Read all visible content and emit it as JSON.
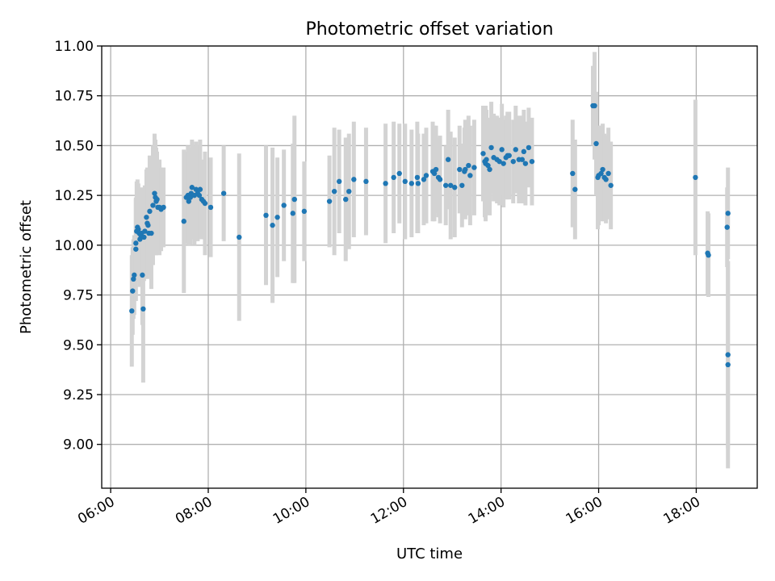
{
  "chart_data": {
    "type": "scatter",
    "title": "Photometric offset variation",
    "xlabel": "UTC time",
    "ylabel": "Photometric offset",
    "grid": true,
    "xlim": [
      "05:49",
      "19:15"
    ],
    "ylim": [
      8.78,
      11.0
    ],
    "xticks": [
      "06:00",
      "08:00",
      "10:00",
      "12:00",
      "14:00",
      "16:00",
      "18:00"
    ],
    "yticks": [
      "9.00",
      "9.25",
      "9.50",
      "9.75",
      "10.00",
      "10.25",
      "10.50",
      "10.75",
      "11.00"
    ],
    "colors": {
      "marker": "#1f77b4",
      "errorbar": "#d3d3d3"
    },
    "series": [
      {
        "x": [
          "06:26",
          "06:27",
          "06:28",
          "06:29",
          "06:31",
          "06:31",
          "06:32",
          "06:33",
          "06:34",
          "06:35",
          "06:36",
          "06:37",
          "06:38",
          "06:39",
          "06:40",
          "06:41",
          "06:42",
          "06:44",
          "06:45",
          "06:46",
          "06:47",
          "06:48",
          "06:50",
          "06:52",
          "06:54",
          "06:55",
          "06:56",
          "06:57",
          "06:58",
          "07:00",
          "07:02",
          "07:05",
          "07:30",
          "07:33",
          "07:35",
          "07:36",
          "07:38",
          "07:39",
          "07:40",
          "07:43",
          "07:45",
          "07:47",
          "07:49",
          "07:50",
          "07:52",
          "07:54",
          "07:56",
          "08:03",
          "08:19",
          "08:38",
          "09:11",
          "09:19",
          "09:25",
          "09:33",
          "09:44",
          "09:46",
          "09:58",
          "10:29",
          "10:35",
          "10:41",
          "10:49",
          "10:53",
          "10:59",
          "11:14",
          "11:38",
          "11:48",
          "11:55",
          "12:02",
          "12:10",
          "12:17",
          "12:18",
          "12:25",
          "12:28",
          "12:36",
          "12:38",
          "12:40",
          "12:43",
          "12:45",
          "12:52",
          "12:55",
          "12:58",
          "13:03",
          "13:09",
          "13:12",
          "13:15",
          "13:16",
          "13:20",
          "13:22",
          "13:27",
          "13:38",
          "13:40",
          "13:41",
          "13:42",
          "13:44",
          "13:46",
          "13:48",
          "13:51",
          "13:55",
          "13:58",
          "14:01",
          "14:03",
          "14:06",
          "14:08",
          "14:10",
          "14:15",
          "14:18",
          "14:22",
          "14:26",
          "14:28",
          "14:30",
          "14:34",
          "14:38",
          "15:28",
          "15:31",
          "15:53",
          "15:55",
          "15:57",
          "15:59",
          "16:00",
          "16:03",
          "16:05",
          "16:07",
          "16:09",
          "16:12",
          "16:15",
          "17:59",
          "18:14",
          "18:15",
          "18:38",
          "18:39",
          "18:39",
          "18:39"
        ],
        "y": [
          9.67,
          9.77,
          9.83,
          9.85,
          9.98,
          10.01,
          10.07,
          10.09,
          10.08,
          10.06,
          10.03,
          10.05,
          10.06,
          9.85,
          9.68,
          10.04,
          10.07,
          10.14,
          10.11,
          10.1,
          10.06,
          10.17,
          10.06,
          10.2,
          10.26,
          10.24,
          10.22,
          10.23,
          10.19,
          10.19,
          10.18,
          10.19,
          10.12,
          10.24,
          10.25,
          10.22,
          10.24,
          10.26,
          10.29,
          10.25,
          10.28,
          10.26,
          10.25,
          10.28,
          10.23,
          10.22,
          10.21,
          10.19,
          10.26,
          10.04,
          10.15,
          10.1,
          10.14,
          10.2,
          10.16,
          10.23,
          10.17,
          10.22,
          10.27,
          10.32,
          10.23,
          10.27,
          10.33,
          10.32,
          10.31,
          10.34,
          10.36,
          10.32,
          10.31,
          10.34,
          10.31,
          10.33,
          10.35,
          10.37,
          10.36,
          10.38,
          10.34,
          10.33,
          10.3,
          10.43,
          10.3,
          10.29,
          10.38,
          10.3,
          10.37,
          10.38,
          10.4,
          10.35,
          10.39,
          10.46,
          10.42,
          10.41,
          10.43,
          10.4,
          10.38,
          10.49,
          10.44,
          10.43,
          10.42,
          10.48,
          10.41,
          10.44,
          10.45,
          10.45,
          10.42,
          10.48,
          10.43,
          10.43,
          10.47,
          10.41,
          10.49,
          10.42,
          10.36,
          10.28,
          10.7,
          10.7,
          10.51,
          10.34,
          10.35,
          10.36,
          10.38,
          10.34,
          10.33,
          10.36,
          10.3,
          10.34,
          9.96,
          9.95,
          10.09,
          10.16,
          9.45,
          9.4
        ],
        "yerr": [
          0.28,
          0.22,
          0.2,
          0.2,
          0.26,
          0.22,
          0.25,
          0.24,
          0.23,
          0.22,
          0.24,
          0.21,
          0.23,
          0.25,
          0.37,
          0.22,
          0.23,
          0.24,
          0.28,
          0.25,
          0.21,
          0.28,
          0.28,
          0.3,
          0.3,
          0.29,
          0.27,
          0.24,
          0.2,
          0.24,
          0.21,
          0.2,
          0.36,
          0.23,
          0.25,
          0.22,
          0.24,
          0.23,
          0.24,
          0.25,
          0.24,
          0.24,
          0.21,
          0.25,
          0.2,
          0.19,
          0.26,
          0.25,
          0.24,
          0.42,
          0.35,
          0.39,
          0.3,
          0.28,
          0.35,
          0.42,
          0.25,
          0.23,
          0.32,
          0.26,
          0.31,
          0.29,
          0.29,
          0.27,
          0.3,
          0.28,
          0.25,
          0.29,
          0.27,
          0.28,
          0.25,
          0.23,
          0.24,
          0.25,
          0.24,
          0.22,
          0.2,
          0.22,
          0.2,
          0.25,
          0.27,
          0.25,
          0.22,
          0.21,
          0.22,
          0.25,
          0.25,
          0.25,
          0.24,
          0.24,
          0.28,
          0.29,
          0.25,
          0.24,
          0.23,
          0.23,
          0.22,
          0.22,
          0.22,
          0.23,
          0.22,
          0.21,
          0.22,
          0.22,
          0.21,
          0.22,
          0.22,
          0.22,
          0.21,
          0.21,
          0.2,
          0.22,
          0.27,
          0.25,
          0.2,
          0.27,
          0.26,
          0.26,
          0.25,
          0.24,
          0.23,
          0.22,
          0.22,
          0.23,
          0.22,
          0.39,
          0.21,
          0.21,
          0.2,
          0.23,
          0.47,
          0.52
        ]
      }
    ]
  }
}
